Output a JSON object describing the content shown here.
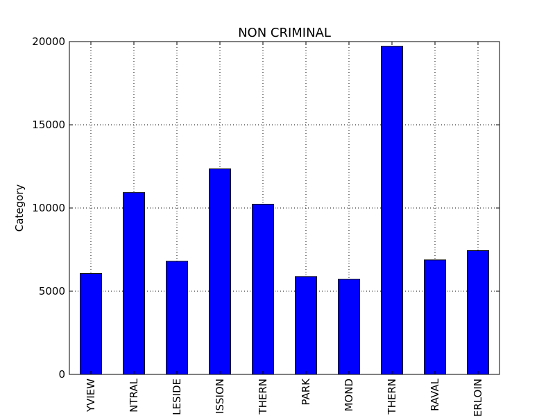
{
  "chart_data": {
    "type": "bar",
    "title": "NON CRIMINAL",
    "xlabel": "",
    "ylabel": "Category",
    "categories": [
      "YVIEW",
      "NTRAL",
      "LESIDE",
      "ISSION",
      "THERN",
      "PARK",
      "MOND",
      "THERN",
      "RAVAL",
      "ERLOIN"
    ],
    "values": [
      6060,
      10930,
      6800,
      12350,
      10230,
      5880,
      5720,
      19720,
      6880,
      7440
    ],
    "ylim": [
      0,
      20000
    ],
    "yticks": [
      0,
      5000,
      10000,
      15000,
      20000
    ],
    "grid": true,
    "bar_color": "#0000ff",
    "edge_color": "#000000"
  }
}
